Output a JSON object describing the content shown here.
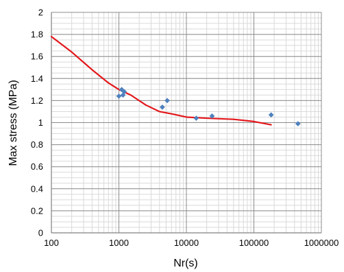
{
  "chart_data": {
    "type": "scatter",
    "title": "",
    "xlabel": "Nr(s)",
    "ylabel": "Max stress (MPa)",
    "x_scale": "log",
    "xlim": [
      100,
      1000000
    ],
    "ylim": [
      0,
      2
    ],
    "x_ticks": [
      100,
      1000,
      10000,
      100000,
      1000000
    ],
    "x_tick_labels": [
      "100",
      "1000",
      "10000",
      "100000",
      "1000000"
    ],
    "y_ticks": [
      0,
      0.2,
      0.4,
      0.6,
      0.8,
      1,
      1.2,
      1.4,
      1.6,
      1.8,
      2
    ],
    "y_tick_labels": [
      "0",
      "0.2",
      "0.4",
      "0.6",
      "0.8",
      "1",
      "1.2",
      "1.4",
      "1.6",
      "1.8",
      "2"
    ],
    "grid": true,
    "legend": "none",
    "series": [
      {
        "type": "scatter",
        "color": "#4f81bd",
        "marker": "diamond",
        "points": [
          {
            "x": 1000,
            "y": 1.24
          },
          {
            "x": 1100,
            "y": 1.3
          },
          {
            "x": 1150,
            "y": 1.25
          },
          {
            "x": 1200,
            "y": 1.28
          },
          {
            "x": 4400,
            "y": 1.14
          },
          {
            "x": 5200,
            "y": 1.2
          },
          {
            "x": 14000,
            "y": 1.04
          },
          {
            "x": 24000,
            "y": 1.06
          },
          {
            "x": 180000,
            "y": 1.07
          },
          {
            "x": 450000,
            "y": 0.99
          }
        ]
      },
      {
        "type": "line",
        "color": "#e3171b",
        "points": [
          {
            "x": 100,
            "y": 1.78
          },
          {
            "x": 200,
            "y": 1.64
          },
          {
            "x": 400,
            "y": 1.48
          },
          {
            "x": 700,
            "y": 1.36
          },
          {
            "x": 1000,
            "y": 1.3
          },
          {
            "x": 1500,
            "y": 1.25
          },
          {
            "x": 2500,
            "y": 1.16
          },
          {
            "x": 4000,
            "y": 1.1
          },
          {
            "x": 6000,
            "y": 1.08
          },
          {
            "x": 10000,
            "y": 1.05
          },
          {
            "x": 20000,
            "y": 1.04
          },
          {
            "x": 50000,
            "y": 1.03
          },
          {
            "x": 100000,
            "y": 1.01
          },
          {
            "x": 180000,
            "y": 0.98
          }
        ]
      }
    ]
  }
}
